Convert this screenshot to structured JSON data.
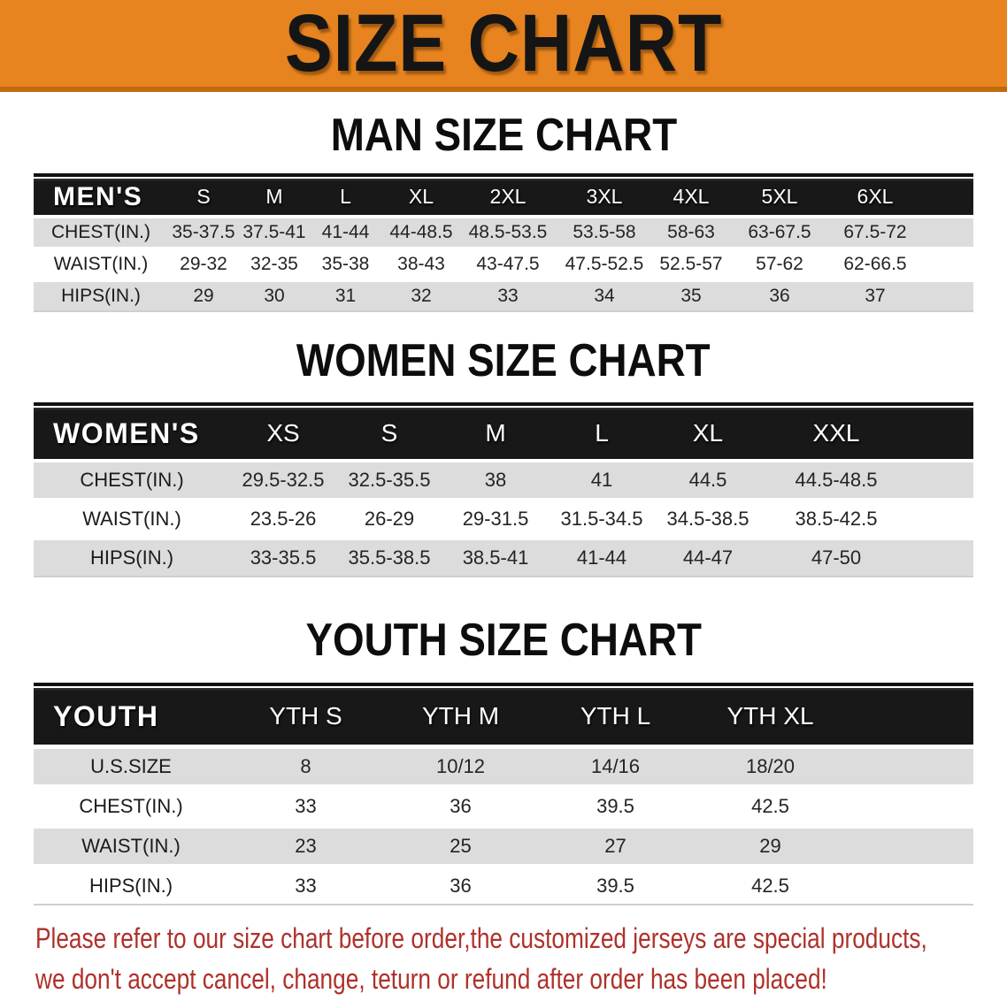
{
  "colors": {
    "banner_bg": "#E8841F",
    "banner_edge": "#C06A10",
    "band": "#181818",
    "row_shade": "#DCDCDC",
    "disclaimer_red": "#AF312A"
  },
  "banner": {
    "title": "SIZE CHART"
  },
  "sections": [
    {
      "heading": "MAN SIZE CHART",
      "table": {
        "label": "MEN'S",
        "columns": [
          "S",
          "M",
          "L",
          "XL",
          "2XL",
          "3XL",
          "4XL",
          "5XL",
          "6XL"
        ],
        "rows": [
          {
            "label": "CHEST(IN.)",
            "values": [
              "35-37.5",
              "37.5-41",
              "41-44",
              "44-48.5",
              "48.5-53.5",
              "53.5-58",
              "58-63",
              "63-67.5",
              "67.5-72"
            ]
          },
          {
            "label": "WAIST(IN.)",
            "values": [
              "29-32",
              "32-35",
              "35-38",
              "38-43",
              "43-47.5",
              "47.5-52.5",
              "52.5-57",
              "57-62",
              "62-66.5"
            ]
          },
          {
            "label": "HIPS(IN.)",
            "values": [
              "29",
              "30",
              "31",
              "32",
              "33",
              "34",
              "35",
              "36",
              "37"
            ]
          }
        ]
      }
    },
    {
      "heading": "WOMEN SIZE CHART",
      "table": {
        "label": "WOMEN'S",
        "columns": [
          "XS",
          "S",
          "M",
          "L",
          "XL",
          "XXL"
        ],
        "rows": [
          {
            "label": "CHEST(IN.)",
            "values": [
              "29.5-32.5",
              "32.5-35.5",
              "38",
              "41",
              "44.5",
              "44.5-48.5"
            ]
          },
          {
            "label": "WAIST(IN.)",
            "values": [
              "23.5-26",
              "26-29",
              "29-31.5",
              "31.5-34.5",
              "34.5-38.5",
              "38.5-42.5"
            ]
          },
          {
            "label": "HIPS(IN.)",
            "values": [
              "33-35.5",
              "35.5-38.5",
              "38.5-41",
              "41-44",
              "44-47",
              "47-50"
            ]
          }
        ]
      }
    },
    {
      "heading": "YOUTH SIZE CHART",
      "table": {
        "label": "YOUTH",
        "columns": [
          "YTH S",
          "YTH M",
          "YTH L",
          "YTH XL"
        ],
        "rows": [
          {
            "label": "U.S.SIZE",
            "values": [
              "8",
              "10/12",
              "14/16",
              "18/20"
            ]
          },
          {
            "label": "CHEST(IN.)",
            "values": [
              "33",
              "36",
              "39.5",
              "42.5"
            ]
          },
          {
            "label": "WAIST(IN.)",
            "values": [
              "23",
              "25",
              "27",
              "29"
            ]
          },
          {
            "label": "HIPS(IN.)",
            "values": [
              "33",
              "36",
              "39.5",
              "42.5"
            ]
          }
        ]
      }
    }
  ],
  "disclaimer": {
    "line1": "Please refer to our size chart before order,the customized jerseys are special products,",
    "line2": "we don't accept cancel, change, teturn or refund after order has been placed!"
  }
}
